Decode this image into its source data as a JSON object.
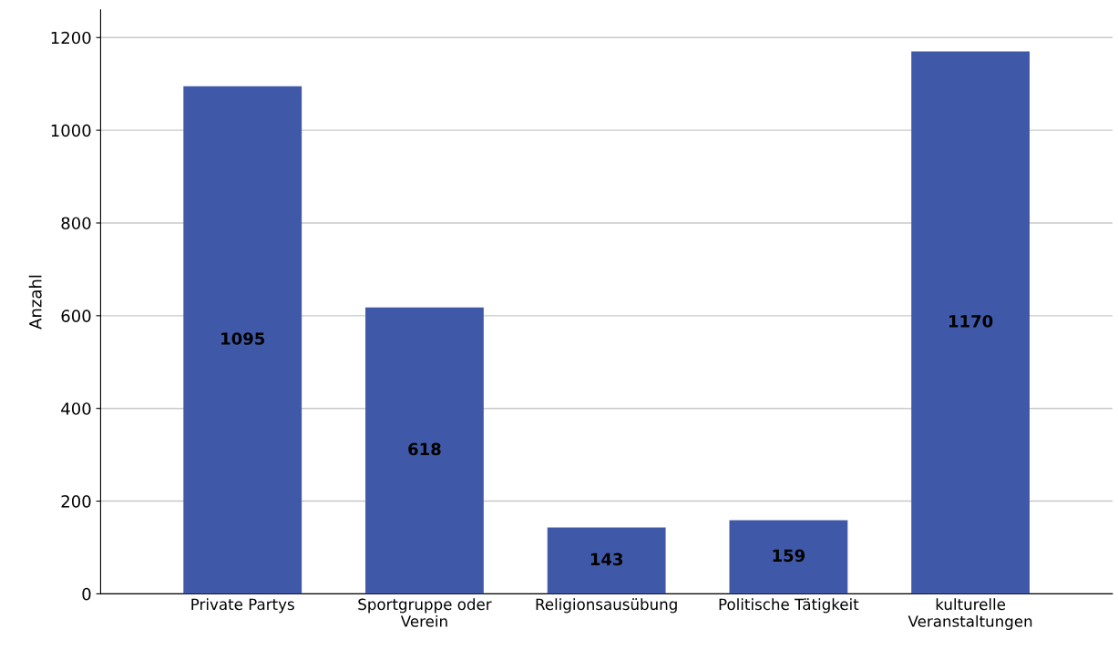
{
  "chart_data": {
    "type": "bar",
    "ylabel": "Anzahl",
    "categories": [
      "Private Partys",
      "Sportgruppe oder\nVerein",
      "Religionsausübung",
      "Politische Tätigkeit",
      "kulturelle\nVeranstaltungen"
    ],
    "values": [
      1095,
      618,
      143,
      159,
      1170
    ],
    "color": "#3f59a8",
    "ylim": [
      0,
      1260
    ],
    "yticks": [
      0,
      200,
      400,
      600,
      800,
      1000,
      1200
    ],
    "grid": "y",
    "data_labels": true
  }
}
